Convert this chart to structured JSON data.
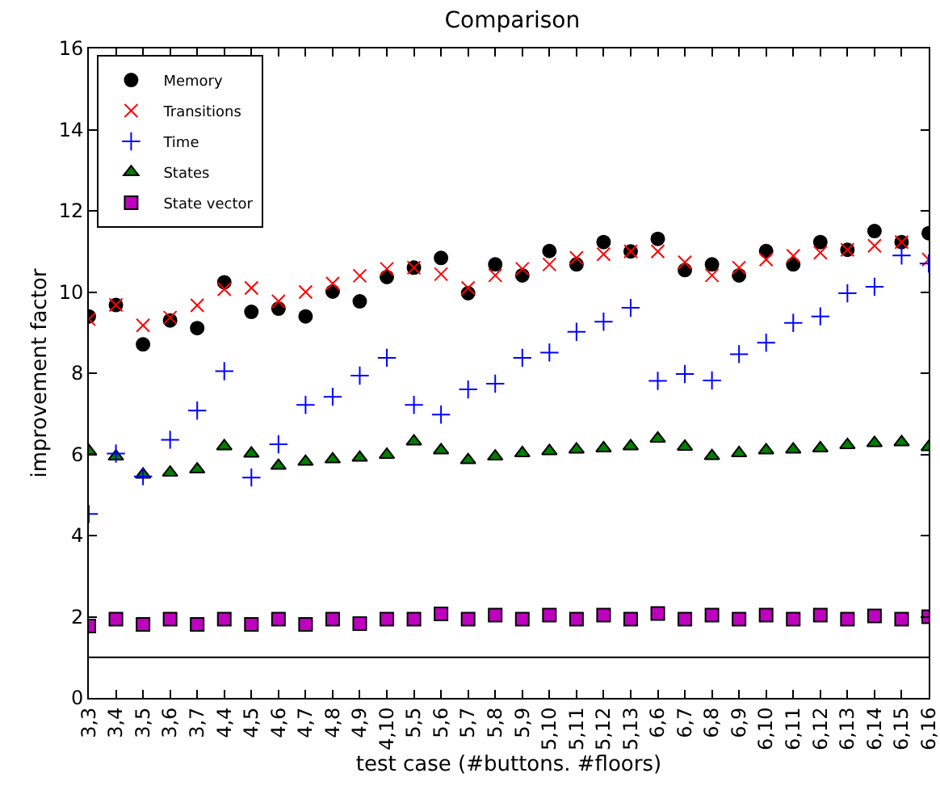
{
  "chart_data": {
    "type": "scatter",
    "title": "Comparison",
    "xlabel": "test case (#buttons. #floors)",
    "ylabel": "improvement factor",
    "categories": [
      "3,3",
      "3,4",
      "3,5",
      "3,6",
      "3,7",
      "4,4",
      "4,5",
      "4,6",
      "4,7",
      "4,8",
      "4,9",
      "4,10",
      "5,5",
      "5,6",
      "5,7",
      "5,8",
      "5,9",
      "5,10",
      "5,11",
      "5,12",
      "5,13",
      "6,6",
      "6,7",
      "6,8",
      "6,9",
      "6,10",
      "6,11",
      "6,12",
      "6,13",
      "6,14",
      "6,15",
      "6,16"
    ],
    "series": [
      {
        "name": "Memory",
        "color": "#000000",
        "marker": "circle",
        "values": [
          9.4,
          9.68,
          8.71,
          9.3,
          9.11,
          10.24,
          9.51,
          9.59,
          9.4,
          10.01,
          9.77,
          10.37,
          10.6,
          10.84,
          9.97,
          10.68,
          10.41,
          11.01,
          10.68,
          11.23,
          11.0,
          11.31,
          10.54,
          10.68,
          10.41,
          11.01,
          10.68,
          11.23,
          11.04,
          11.5,
          11.23,
          11.45
        ]
      },
      {
        "name": "Transitions",
        "color": "#ff0000",
        "marker": "x",
        "values": [
          9.33,
          9.68,
          9.18,
          9.37,
          9.67,
          10.07,
          10.1,
          9.77,
          10.0,
          10.21,
          10.4,
          10.57,
          10.6,
          10.44,
          10.1,
          10.41,
          10.57,
          10.68,
          10.84,
          10.93,
          11.0,
          11.0,
          10.73,
          10.41,
          10.6,
          10.8,
          10.89,
          10.97,
          11.04,
          11.14,
          11.23,
          10.8
        ]
      },
      {
        "name": "Time",
        "color": "#0000ff",
        "marker": "cross",
        "values": [
          4.53,
          6.02,
          5.46,
          6.36,
          7.08,
          8.05,
          5.43,
          6.25,
          7.22,
          7.42,
          7.94,
          8.38,
          7.22,
          6.98,
          7.6,
          7.74,
          8.38,
          8.51,
          9.02,
          9.27,
          9.61,
          7.81,
          7.98,
          7.82,
          8.47,
          8.75,
          9.24,
          9.4,
          9.97,
          10.13,
          10.9,
          10.7
        ]
      },
      {
        "name": "States",
        "color": "#007f00",
        "marker": "triangle",
        "values": [
          6.08,
          5.95,
          5.5,
          5.55,
          5.63,
          6.2,
          6.02,
          5.72,
          5.82,
          5.88,
          5.92,
          5.99,
          6.32,
          6.1,
          5.86,
          5.95,
          6.03,
          6.08,
          6.12,
          6.15,
          6.2,
          6.39,
          6.19,
          5.96,
          6.03,
          6.1,
          6.12,
          6.15,
          6.23,
          6.28,
          6.3,
          6.18
        ]
      },
      {
        "name": "State vector",
        "color": "#bf00bf",
        "marker": "square",
        "values": [
          1.77,
          1.94,
          1.81,
          1.94,
          1.81,
          1.94,
          1.81,
          1.94,
          1.81,
          1.94,
          1.83,
          1.94,
          1.94,
          2.07,
          1.94,
          2.04,
          1.94,
          2.04,
          1.94,
          2.04,
          1.94,
          2.08,
          1.94,
          2.04,
          1.94,
          2.04,
          1.94,
          2.04,
          1.94,
          2.02,
          1.94,
          2.0
        ]
      }
    ],
    "ylim": [
      0,
      16
    ],
    "yticks": [
      0,
      2,
      4,
      6,
      8,
      10,
      12,
      14,
      16
    ],
    "ref_lines": [
      {
        "axis": "y",
        "value": 1,
        "color": "#000000"
      }
    ],
    "legend": "top left"
  }
}
